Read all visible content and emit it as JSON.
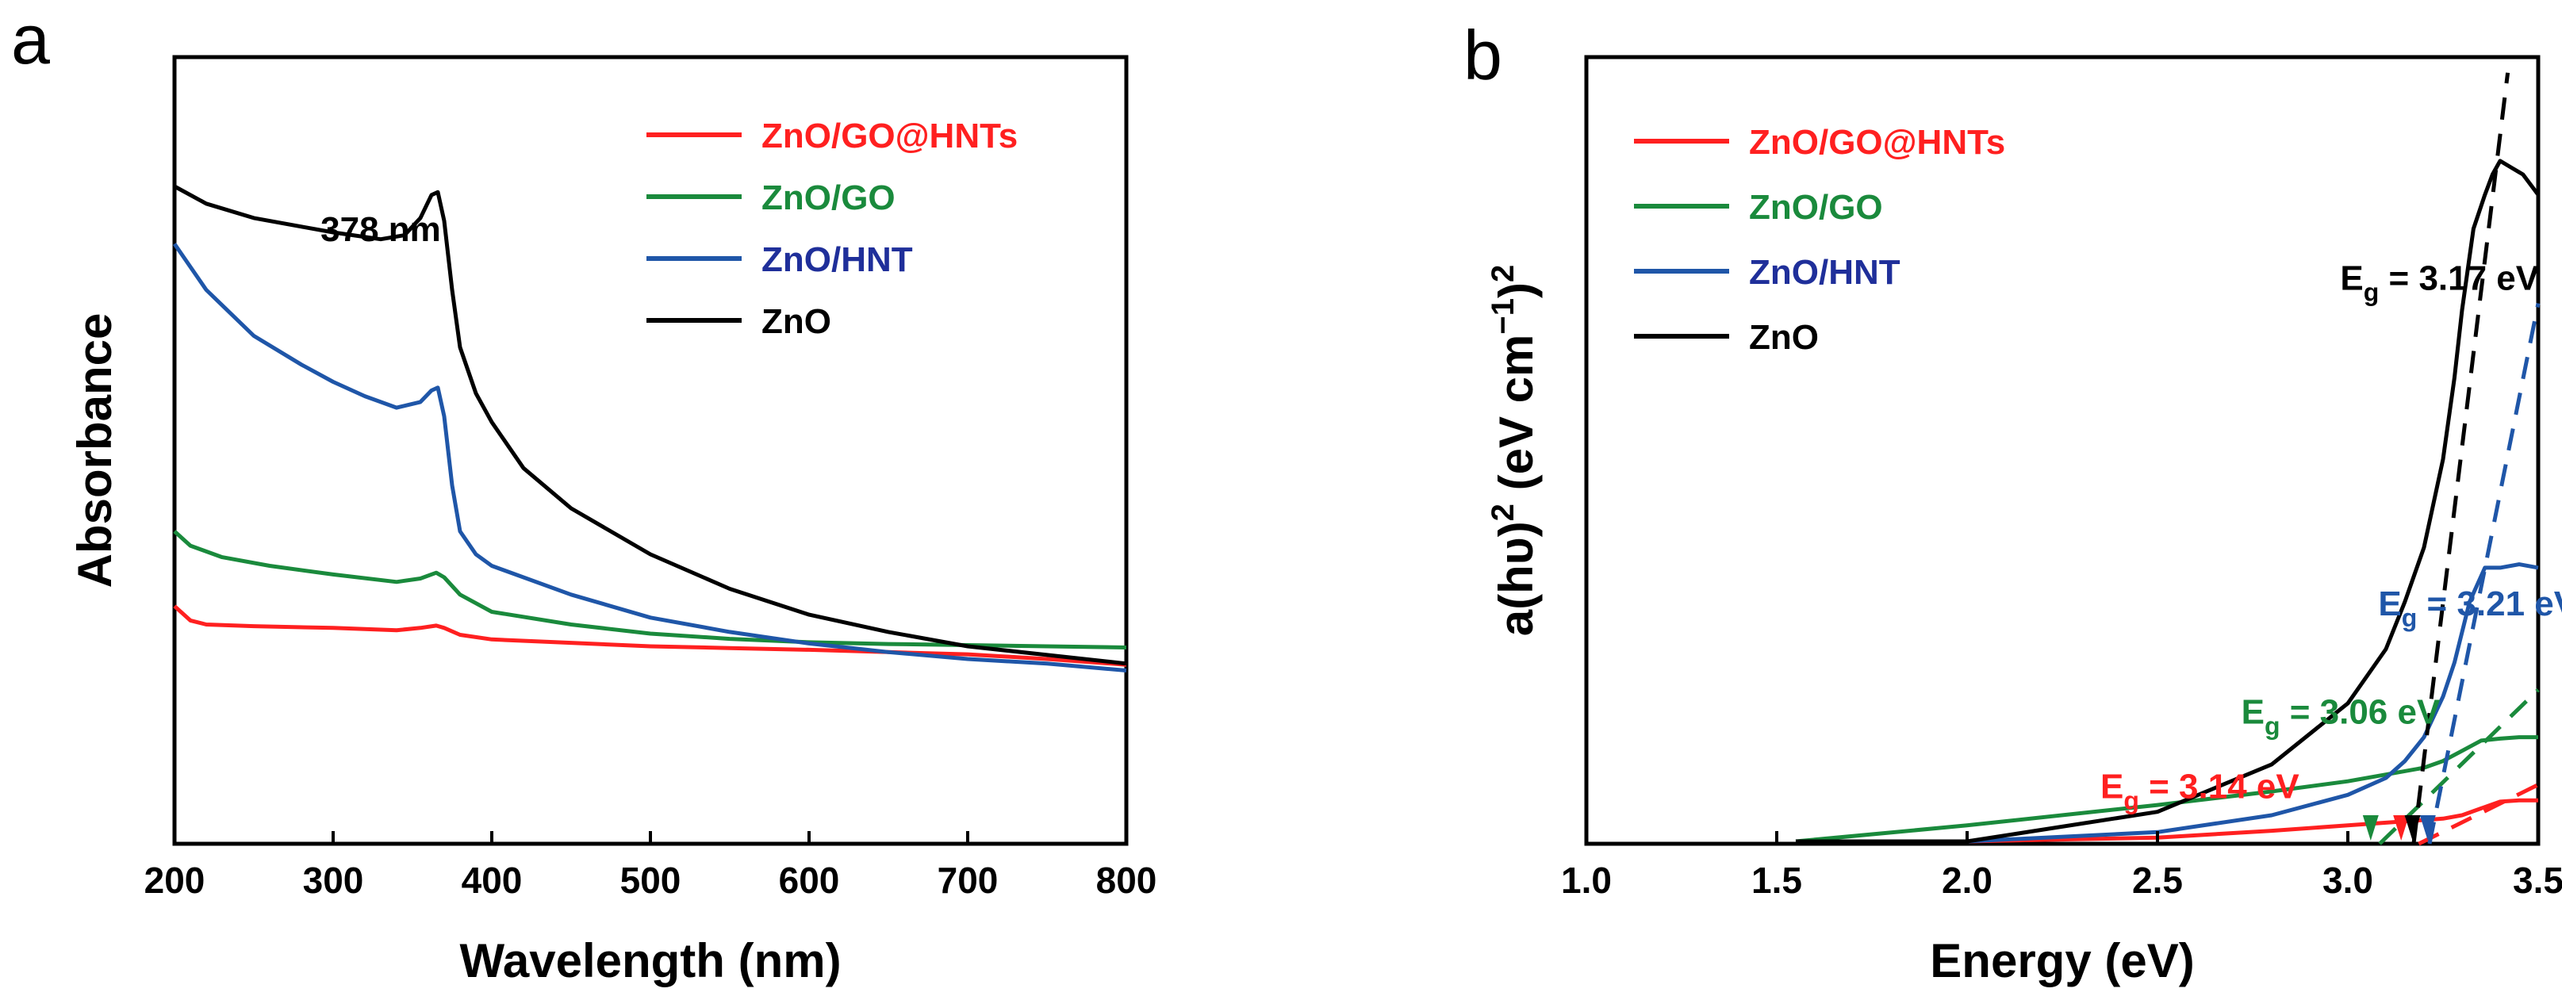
{
  "chart_data": [
    {
      "panel_label": "a",
      "type": "line",
      "title": "",
      "xlabel": "Wavelength (nm)",
      "ylabel": "Absorbance",
      "xlim": [
        200,
        800
      ],
      "ylim": [
        0,
        1.0
      ],
      "xticks": [
        200,
        300,
        400,
        500,
        600,
        700,
        800
      ],
      "yticks_shown": false,
      "legend_position": "top-right",
      "annotations": [
        {
          "text": "378 nm",
          "x": 330,
          "y": 0.905
        }
      ],
      "series": [
        {
          "name": "ZnO/GO@HNTs",
          "color": "#ff2020",
          "x": [
            200,
            210,
            220,
            250,
            300,
            340,
            355,
            365,
            370,
            380,
            400,
            450,
            500,
            550,
            600,
            650,
            700,
            750,
            800
          ],
          "y": [
            0.27,
            0.245,
            0.238,
            0.235,
            0.232,
            0.228,
            0.232,
            0.236,
            0.232,
            0.22,
            0.212,
            0.206,
            0.2,
            0.197,
            0.194,
            0.19,
            0.186,
            0.178,
            0.168
          ]
        },
        {
          "name": "ZnO/GO",
          "color": "#1a8a3c",
          "x": [
            200,
            210,
            230,
            260,
            300,
            340,
            355,
            365,
            370,
            380,
            400,
            450,
            500,
            550,
            600,
            650,
            700,
            750,
            800
          ],
          "y": [
            0.4,
            0.375,
            0.355,
            0.34,
            0.325,
            0.312,
            0.318,
            0.328,
            0.32,
            0.29,
            0.26,
            0.238,
            0.222,
            0.213,
            0.207,
            0.204,
            0.202,
            0.2,
            0.198
          ]
        },
        {
          "name": "ZnO/HNT",
          "color": "#1f56a8",
          "x": [
            200,
            220,
            250,
            280,
            300,
            320,
            340,
            355,
            362,
            366,
            370,
            375,
            380,
            390,
            400,
            450,
            500,
            550,
            600,
            650,
            700,
            750,
            800
          ],
          "y": [
            0.9,
            0.82,
            0.74,
            0.69,
            0.66,
            0.635,
            0.615,
            0.625,
            0.645,
            0.65,
            0.6,
            0.48,
            0.4,
            0.36,
            0.34,
            0.29,
            0.25,
            0.225,
            0.205,
            0.19,
            0.178,
            0.17,
            0.158
          ]
        },
        {
          "name": "ZnO",
          "color": "#000000",
          "x": [
            200,
            220,
            250,
            280,
            300,
            330,
            345,
            355,
            362,
            366,
            370,
            375,
            380,
            390,
            400,
            420,
            450,
            500,
            550,
            600,
            650,
            700,
            750,
            800
          ],
          "y": [
            1.0,
            0.97,
            0.945,
            0.93,
            0.92,
            0.908,
            0.915,
            0.945,
            0.985,
            0.99,
            0.94,
            0.82,
            0.72,
            0.64,
            0.59,
            0.51,
            0.44,
            0.36,
            0.3,
            0.255,
            0.225,
            0.2,
            0.185,
            0.17
          ]
        }
      ]
    },
    {
      "panel_label": "b",
      "type": "line",
      "title": "",
      "xlabel": "Energy (eV)",
      "ylabel_text": "a(hυ)",
      "ylabel_sup1": "2",
      "ylabel_mid": " (eV cm",
      "ylabel_sup2": "−1",
      "ylabel_end": ")",
      "ylabel_sup3": "2",
      "xlim": [
        1.0,
        3.5
      ],
      "ylim": [
        0,
        1.0
      ],
      "xticks": [
        "1.0",
        "1.5",
        "2.0",
        "2.5",
        "3.0",
        "3.5"
      ],
      "yticks_shown": false,
      "legend_position": "top-left",
      "series": [
        {
          "name": "ZnO/GO@HNTs",
          "color": "#ff2020",
          "x": [
            1.55,
            2.0,
            2.5,
            2.8,
            3.0,
            3.1,
            3.2,
            3.25,
            3.3,
            3.35,
            3.4,
            3.45,
            3.5
          ],
          "y": [
            0.0,
            0.01,
            0.022,
            0.032,
            0.04,
            0.044,
            0.048,
            0.05,
            0.055,
            0.065,
            0.075,
            0.077,
            0.077
          ]
        },
        {
          "name": "ZnO/GO",
          "color": "#1a8a3c",
          "x": [
            1.55,
            2.0,
            2.5,
            2.8,
            3.0,
            3.1,
            3.2,
            3.25,
            3.3,
            3.35,
            3.4,
            3.45,
            3.5
          ],
          "y": [
            0.015,
            0.04,
            0.07,
            0.09,
            0.105,
            0.115,
            0.125,
            0.135,
            0.15,
            0.165,
            0.168,
            0.17,
            0.17
          ]
        },
        {
          "name": "ZnO/HNT",
          "color": "#1f56a8",
          "x": [
            1.55,
            2.0,
            2.5,
            2.8,
            3.0,
            3.1,
            3.15,
            3.2,
            3.25,
            3.28,
            3.32,
            3.36,
            3.4,
            3.45,
            3.5
          ],
          "y": [
            0.0,
            0.01,
            0.03,
            0.055,
            0.085,
            0.11,
            0.135,
            0.17,
            0.23,
            0.28,
            0.37,
            0.42,
            0.42,
            0.425,
            0.42
          ]
        },
        {
          "name": "ZnO",
          "color": "#000000",
          "x": [
            1.55,
            2.0,
            2.5,
            2.8,
            3.0,
            3.1,
            3.15,
            3.2,
            3.25,
            3.28,
            3.3,
            3.33,
            3.36,
            3.38,
            3.4,
            3.43,
            3.46,
            3.5
          ],
          "y": [
            0.0,
            0.015,
            0.06,
            0.13,
            0.22,
            0.3,
            0.37,
            0.45,
            0.58,
            0.7,
            0.8,
            0.92,
            0.97,
            1.0,
            1.02,
            1.01,
            1.0,
            0.97
          ]
        }
      ],
      "tangents": [
        {
          "name": "ZnO/GO@HNTs",
          "color": "#ff2020",
          "x": [
            3.14,
            3.5
          ],
          "y": [
            0.0,
            0.1
          ]
        },
        {
          "name": "ZnO/GO",
          "color": "#1a8a3c",
          "x": [
            3.06,
            3.5
          ],
          "y": [
            0.0,
            0.24
          ]
        },
        {
          "name": "ZnO/HNT",
          "color": "#1f56a8",
          "x": [
            3.21,
            3.5
          ],
          "y": [
            0.0,
            0.81
          ]
        },
        {
          "name": "ZnO",
          "color": "#000000",
          "x": [
            3.17,
            3.42
          ],
          "y": [
            0.0,
            1.15
          ]
        }
      ],
      "annotations": [
        {
          "prefix": "E",
          "sub": "g",
          "text": " = 3.17 eV",
          "color": "#000000",
          "x": 2.98,
          "y": 0.83
        },
        {
          "prefix": "E",
          "sub": "g",
          "text": " = 3.21 eV",
          "color": "#1f56a8",
          "x": 3.08,
          "y": 0.35
        },
        {
          "prefix": "E",
          "sub": "g",
          "text": " = 3.06 eV",
          "color": "#1a8a3c",
          "x": 2.72,
          "y": 0.19
        },
        {
          "prefix": "E",
          "sub": "g",
          "text": " = 3.14 eV",
          "color": "#ff2020",
          "x": 2.35,
          "y": 0.08
        }
      ]
    }
  ]
}
